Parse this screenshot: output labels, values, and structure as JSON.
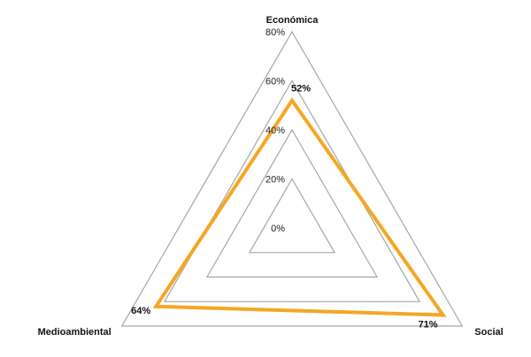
{
  "chart_data": {
    "type": "radar",
    "axes": [
      "Económica",
      "Social",
      "Medioambiental"
    ],
    "rlim": [
      0,
      80
    ],
    "ticks": [
      0,
      20,
      40,
      60,
      80
    ],
    "tick_labels": [
      "0%",
      "20%",
      "40%",
      "60%",
      "80%"
    ],
    "grid": true,
    "series": [
      {
        "values": [
          52,
          71,
          64
        ],
        "data_labels": [
          "52%",
          "71%",
          "64%"
        ],
        "color": "#f5a623"
      }
    ]
  }
}
